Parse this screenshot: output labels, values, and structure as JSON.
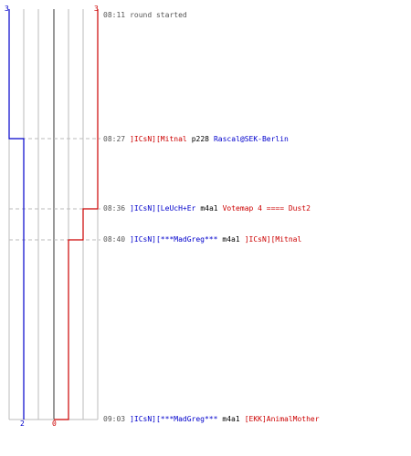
{
  "colors": {
    "blue": "#0000cc",
    "red": "#cc0000",
    "text": "#000000",
    "time": "#555555",
    "grid": "#bbbbbb",
    "grid_center": "#555555",
    "dash": "#bbbbbb"
  },
  "scores": {
    "blue_start": "3",
    "red_start": "3",
    "blue_end": "2",
    "red_end": "0"
  },
  "timeline": {
    "blue_levels": [
      3,
      3,
      2
    ],
    "red_levels": [
      3,
      3,
      2,
      1,
      0
    ]
  },
  "events": [
    {
      "time": "08:11",
      "type": "message",
      "text": "round started"
    },
    {
      "time": "08:27",
      "type": "kill",
      "killer": "]ICsN][Mitnal",
      "killer_team": "red",
      "weapon": "p228",
      "victim": "Rascal@SEK-Berlin",
      "victim_team": "blue"
    },
    {
      "time": "08:36",
      "type": "kill",
      "killer": "]ICsN][LeUcH+Er",
      "killer_team": "blue",
      "weapon": "m4a1",
      "victim": "Votemap 4 ==== Dust2",
      "victim_team": "red"
    },
    {
      "time": "08:40",
      "type": "kill",
      "killer": "]ICsN][***MadGreg***",
      "killer_team": "blue",
      "weapon": "m4a1",
      "victim": "]ICsN][Mitnal",
      "victim_team": "red"
    },
    {
      "time": "09:03",
      "type": "kill",
      "killer": "]ICsN][***MadGreg***",
      "killer_team": "blue",
      "weapon": "m4a1",
      "victim": "[EKK]AnimalMother",
      "victim_team": "red"
    }
  ]
}
